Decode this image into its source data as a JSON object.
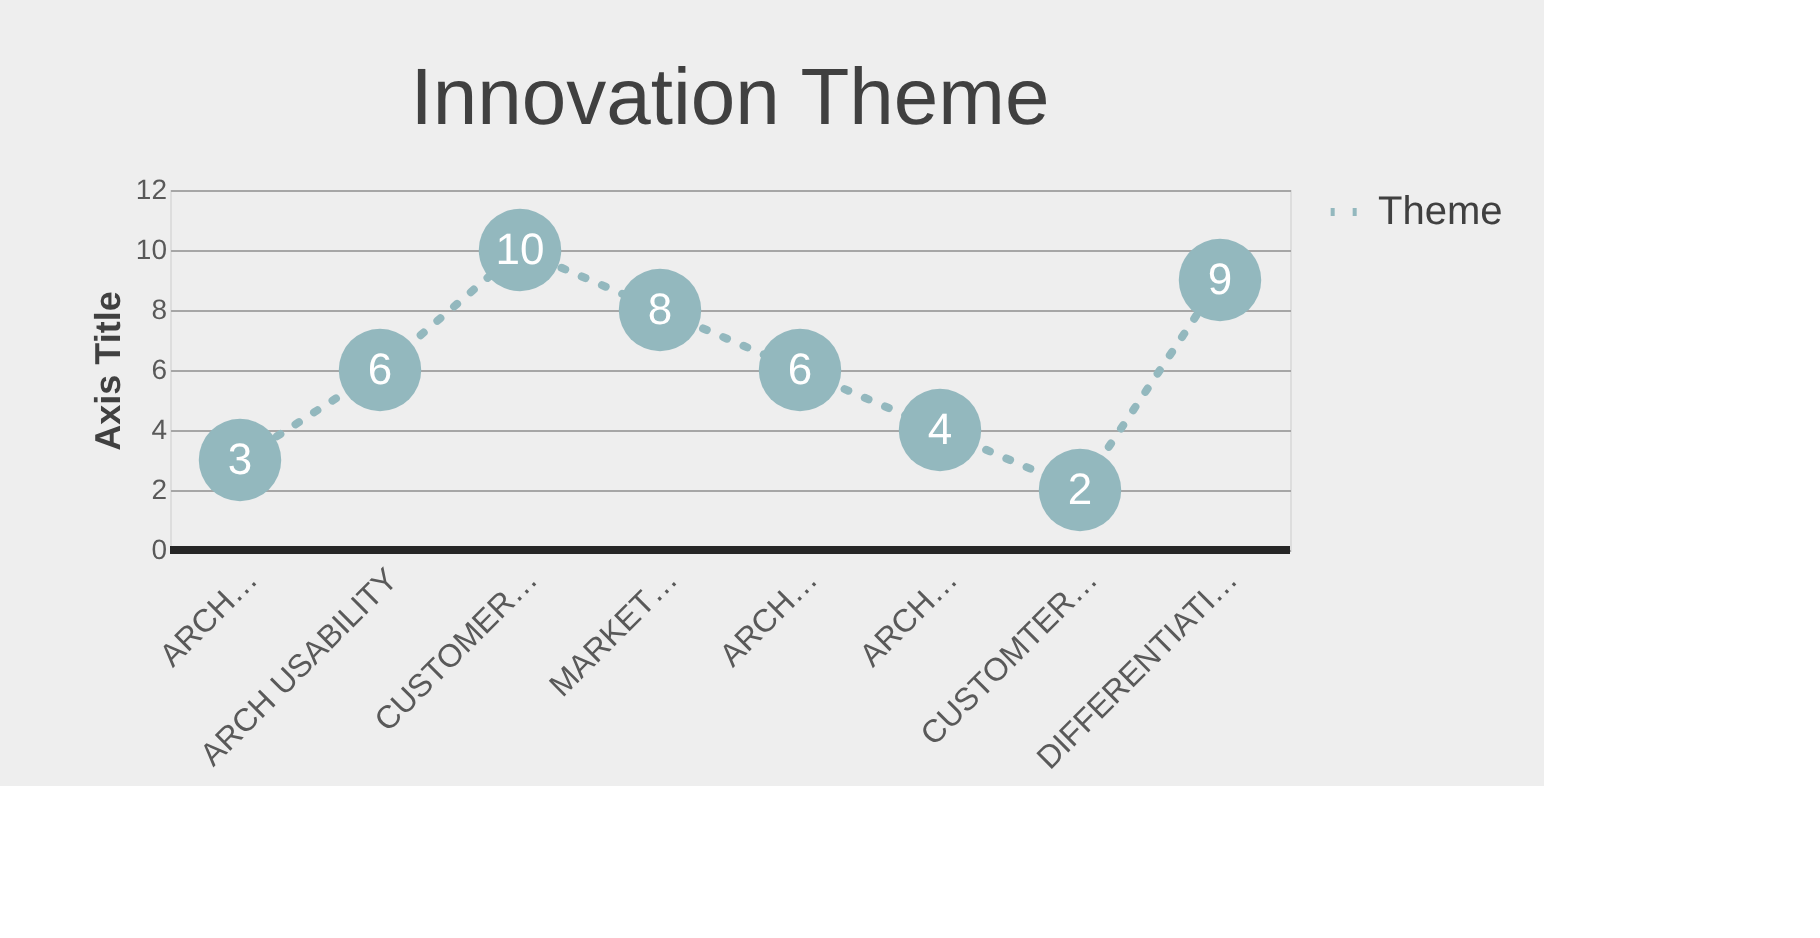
{
  "chart_data": {
    "type": "line",
    "title": "Innovation Theme",
    "ylabel": "Axis Title",
    "categories": [
      "ARCH…",
      "ARCH USABILITY",
      "CUSTOMER…",
      "MARKET…",
      "ARCH…",
      "ARCH…",
      "CUSTOMTER…",
      "DIFFERENTIATI…"
    ],
    "series": [
      {
        "name": "Theme",
        "color": "#93b8be",
        "values": [
          3,
          6,
          10,
          8,
          6,
          4,
          2,
          9
        ]
      }
    ],
    "ylim": [
      0,
      12
    ],
    "yticks": [
      0,
      2,
      4,
      6,
      8,
      10,
      12
    ],
    "grid": "y",
    "legend": "right",
    "marker": "circle",
    "line_style": "dotted",
    "data_labels": true
  }
}
